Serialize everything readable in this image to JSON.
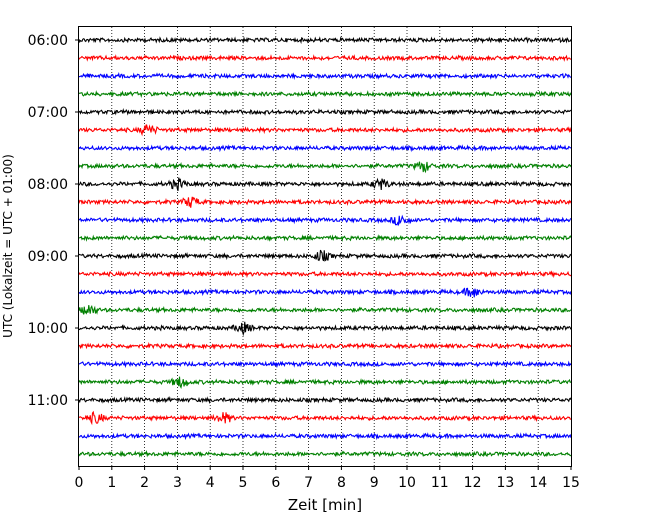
{
  "chart_data": {
    "type": "line",
    "title": "",
    "xlabel": "Zeit  [min]",
    "ylabel": "UTC (Lokalzeit = UTC + 01:00)",
    "xlim": [
      0,
      15
    ],
    "x_ticks": [
      "0",
      "1",
      "2",
      "3",
      "4",
      "5",
      "6",
      "7",
      "8",
      "9",
      "10",
      "11",
      "12",
      "13",
      "14",
      "15"
    ],
    "y_tick_labels": [
      "06:00",
      "07:00",
      "08:00",
      "09:00",
      "10:00",
      "11:00"
    ],
    "grid": "vertical dotted",
    "trace_colors": [
      "#000000",
      "#ff0000",
      "#0000ff",
      "#008000"
    ],
    "series": [
      {
        "start": "06:00",
        "color": "#000000"
      },
      {
        "start": "06:15",
        "color": "#ff0000"
      },
      {
        "start": "06:30",
        "color": "#0000ff"
      },
      {
        "start": "06:45",
        "color": "#008000"
      },
      {
        "start": "07:00",
        "color": "#000000"
      },
      {
        "start": "07:15",
        "color": "#ff0000",
        "events_min": [
          2.1
        ]
      },
      {
        "start": "07:30",
        "color": "#0000ff"
      },
      {
        "start": "07:45",
        "color": "#008000",
        "events_min": [
          10.5
        ]
      },
      {
        "start": "08:00",
        "color": "#000000",
        "events_min": [
          3.0,
          9.2
        ]
      },
      {
        "start": "08:15",
        "color": "#ff0000",
        "events_min": [
          3.4
        ]
      },
      {
        "start": "08:30",
        "color": "#0000ff",
        "events_min": [
          9.8
        ]
      },
      {
        "start": "08:45",
        "color": "#008000"
      },
      {
        "start": "09:00",
        "color": "#000000",
        "events_min": [
          7.4
        ]
      },
      {
        "start": "09:15",
        "color": "#ff0000"
      },
      {
        "start": "09:30",
        "color": "#0000ff",
        "events_min": [
          12.0
        ]
      },
      {
        "start": "09:45",
        "color": "#008000",
        "events_min": [
          0.3
        ]
      },
      {
        "start": "10:00",
        "color": "#000000",
        "events_min": [
          5.0
        ]
      },
      {
        "start": "10:15",
        "color": "#ff0000"
      },
      {
        "start": "10:30",
        "color": "#0000ff"
      },
      {
        "start": "10:45",
        "color": "#008000",
        "events_min": [
          3.1
        ]
      },
      {
        "start": "11:00",
        "color": "#000000"
      },
      {
        "start": "11:15",
        "color": "#ff0000",
        "events_min": [
          0.5,
          4.4
        ]
      },
      {
        "start": "11:30",
        "color": "#0000ff"
      },
      {
        "start": "11:45",
        "color": "#008000"
      }
    ]
  }
}
